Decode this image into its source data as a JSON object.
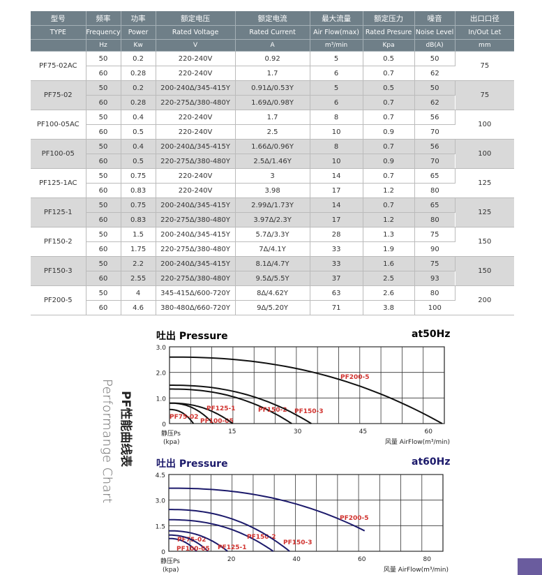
{
  "table": {
    "header_cn": [
      "型号",
      "频率",
      "功率",
      "额定电压",
      "额定电流",
      "最大流量",
      "额定压力",
      "噪音",
      "出口口径"
    ],
    "header_en": [
      "TYPE",
      "Frequency",
      "Power",
      "Rated Voltage",
      "Rated Current",
      "Air Flow(max)",
      "Rated Presure",
      "Noise Level",
      "In/Out Let"
    ],
    "header_unit": [
      "",
      "Hz",
      "Kw",
      "V",
      "A",
      "m³/min",
      "Kpa",
      "dB(A)",
      "mm"
    ],
    "models": [
      {
        "type": "PF75-02AC",
        "outlet": "75",
        "rows": [
          [
            "50",
            "0.2",
            "220-240V",
            "0.92",
            "5",
            "0.5",
            "50"
          ],
          [
            "60",
            "0.28",
            "220-240V",
            "1.7",
            "6",
            "0.7",
            "62"
          ]
        ]
      },
      {
        "type": "PF75-02",
        "outlet": "75",
        "rows": [
          [
            "50",
            "0.2",
            "200-240Δ/345-415Y",
            "0.91Δ/0.53Y",
            "5",
            "0.5",
            "50"
          ],
          [
            "60",
            "0.28",
            "220-275Δ/380-480Y",
            "1.69Δ/0.98Y",
            "6",
            "0.7",
            "62"
          ]
        ]
      },
      {
        "type": "PF100-05AC",
        "outlet": "100",
        "rows": [
          [
            "50",
            "0.4",
            "220-240V",
            "1.7",
            "8",
            "0.7",
            "56"
          ],
          [
            "60",
            "0.5",
            "220-240V",
            "2.5",
            "10",
            "0.9",
            "70"
          ]
        ]
      },
      {
        "type": "PF100-05",
        "outlet": "100",
        "rows": [
          [
            "50",
            "0.4",
            "200-240Δ/345-415Y",
            "1.66Δ/0.96Y",
            "8",
            "0.7",
            "56"
          ],
          [
            "60",
            "0.5",
            "220-275Δ/380-480Y",
            "2.5Δ/1.46Y",
            "10",
            "0.9",
            "70"
          ]
        ]
      },
      {
        "type": "PF125-1AC",
        "outlet": "125",
        "rows": [
          [
            "50",
            "0.75",
            "220-240V",
            "3",
            "14",
            "0.7",
            "65"
          ],
          [
            "60",
            "0.83",
            "220-240V",
            "3.98",
            "17",
            "1.2",
            "80"
          ]
        ]
      },
      {
        "type": "PF125-1",
        "outlet": "125",
        "rows": [
          [
            "50",
            "0.75",
            "200-240Δ/345-415Y",
            "2.99Δ/1.73Y",
            "14",
            "0.7",
            "65"
          ],
          [
            "60",
            "0.83",
            "220-275Δ/380-480Y",
            "3.97Δ/2.3Y",
            "17",
            "1.2",
            "80"
          ]
        ]
      },
      {
        "type": "PF150-2",
        "outlet": "150",
        "rows": [
          [
            "50",
            "1.5",
            "200-240Δ/345-415Y",
            "5.7Δ/3.3Y",
            "28",
            "1.3",
            "75"
          ],
          [
            "60",
            "1.75",
            "220-275Δ/380-480Y",
            "7Δ/4.1Y",
            "33",
            "1.9",
            "90"
          ]
        ]
      },
      {
        "type": "PF150-3",
        "outlet": "150",
        "rows": [
          [
            "50",
            "2.2",
            "200-240Δ/345-415Y",
            "8.1Δ/4.7Y",
            "33",
            "1.6",
            "75"
          ],
          [
            "60",
            "2.55",
            "220-275Δ/380-480Y",
            "9.5Δ/5.5Y",
            "37",
            "2.5",
            "93"
          ]
        ]
      },
      {
        "type": "PF200-5",
        "outlet": "200",
        "rows": [
          [
            "50",
            "4",
            "345-415Δ/600-720Y",
            "8Δ/4.62Y",
            "63",
            "2.6",
            "80"
          ],
          [
            "60",
            "4.6",
            "380-480Δ/660-720Y",
            "9Δ/5.20Y",
            "71",
            "3.8",
            "100"
          ]
        ]
      }
    ]
  },
  "side_title": {
    "cn": "PF性能曲线表",
    "en": "Performange Chart"
  },
  "chart_data": [
    {
      "type": "line",
      "title": "吐出 Pressure",
      "subtitle": "at50Hz",
      "ylabel": "静压Ps",
      "ylabel2": "(kpa)",
      "xlabel": "风量 AirFlow(m³/min)",
      "xlim": [
        0,
        63
      ],
      "ylim": [
        0,
        3
      ],
      "xticks": [
        "15",
        "30",
        "45",
        "60"
      ],
      "xtick_values": [
        15,
        30,
        45,
        60
      ],
      "yticks": [
        "0",
        "1.0",
        "2.0",
        "3.0"
      ],
      "ytick_values": [
        0,
        1,
        2,
        3
      ],
      "grid": true,
      "line_color": "#111111",
      "label_color": "#d0312d",
      "title_color": "#222222",
      "series": [
        {
          "name": "PF75-02",
          "p0": 0.55,
          "xmax": 5.5,
          "pend": 0
        },
        {
          "name": "PF100-05",
          "p0": 0.8,
          "xmax": 10,
          "pend": 0
        },
        {
          "name": "PF125-1",
          "p0": 0.8,
          "xmax": 14.5,
          "pend": 0
        },
        {
          "name": "PF150-2",
          "p0": 1.35,
          "xmax": 28,
          "pend": 0
        },
        {
          "name": "PF150-3",
          "p0": 1.5,
          "xmax": 32.5,
          "pend": 0
        },
        {
          "name": "PF200-5",
          "p0": 2.6,
          "xmax": 62.5,
          "pend": 0
        }
      ]
    },
    {
      "type": "line",
      "title": "吐出 Pressure",
      "subtitle": "at60Hz",
      "ylabel": "静压Ps",
      "ylabel2": "(kpa)",
      "xlabel": "风量 AirFlow(m³/min)",
      "xlim": [
        0,
        84
      ],
      "ylim": [
        0,
        4.5
      ],
      "xticks": [
        "20",
        "40",
        "60",
        "80"
      ],
      "xtick_values": [
        20,
        40,
        60,
        80
      ],
      "yticks": [
        "0",
        "1.5",
        "3.0",
        "4.5"
      ],
      "ytick_values": [
        0,
        1.5,
        3,
        4.5
      ],
      "grid": true,
      "line_color": "#1c1a6b",
      "label_color": "#d0312d",
      "title_color": "#1c1a6b",
      "series": [
        {
          "name": "PF75-02",
          "p0": 0.75,
          "xmax": 8.5,
          "pend": 0
        },
        {
          "name": "PF100-05",
          "p0": 0.95,
          "xmax": 12,
          "pend": 0
        },
        {
          "name": "PF125-1",
          "p0": 1.2,
          "xmax": 18,
          "pend": 0
        },
        {
          "name": "PF150-2",
          "p0": 1.85,
          "xmax": 32,
          "pend": 0
        },
        {
          "name": "PF150-3",
          "p0": 2.45,
          "xmax": 37,
          "pend": 0
        },
        {
          "name": "PF200-5",
          "p0": 3.7,
          "xmax": 60,
          "pend": 1.2
        }
      ]
    }
  ]
}
